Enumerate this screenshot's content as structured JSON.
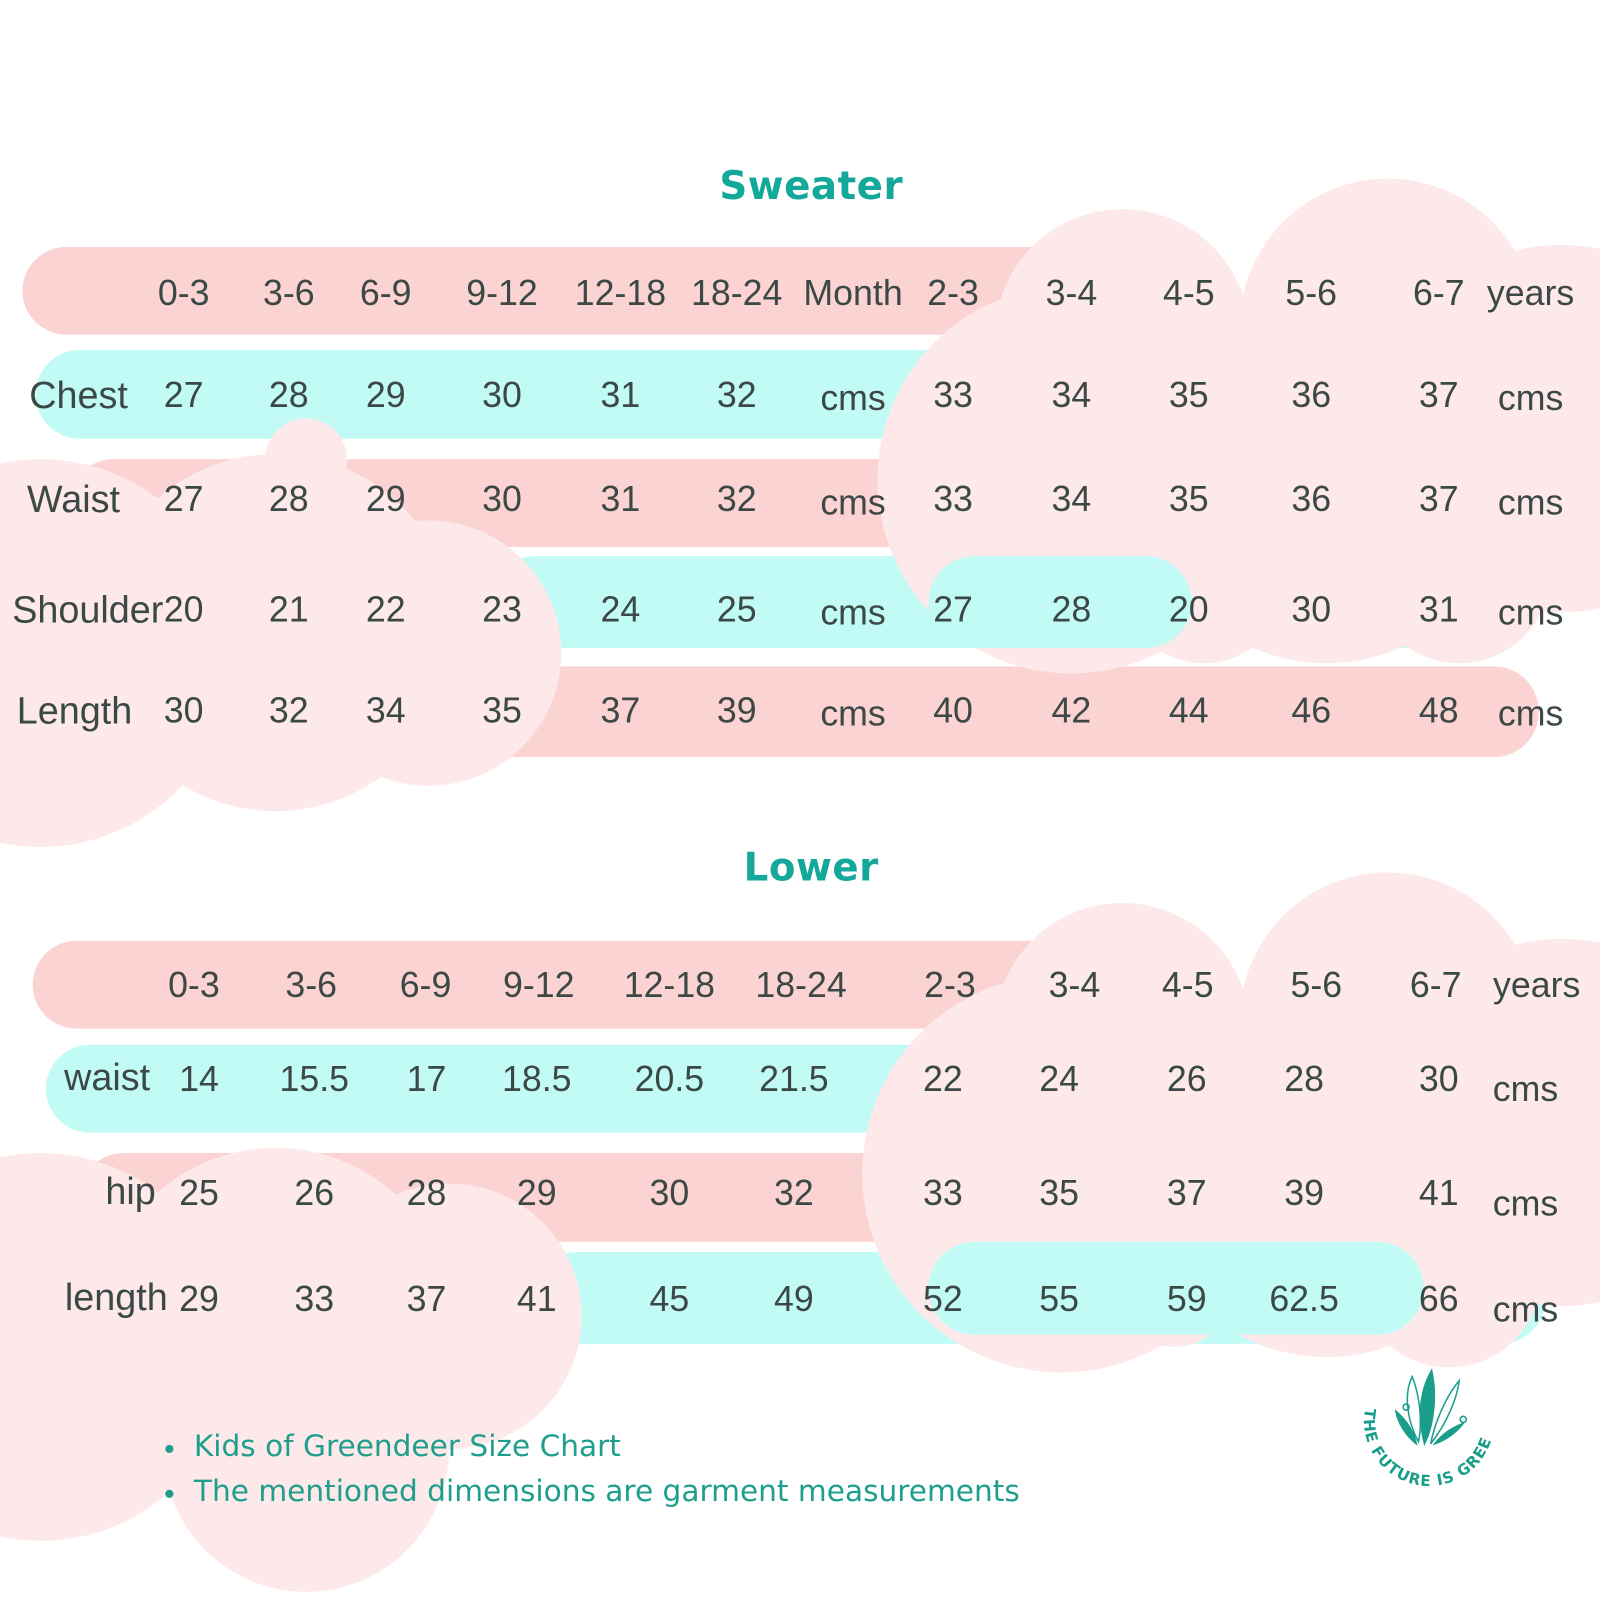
{
  "colors": {
    "band_pink": "#fcd3d3",
    "band_cyan": "#c2fbf6",
    "cloud": "#fde9e9",
    "title": "#14a89b",
    "text": "#3b4846",
    "note": "#1e9e8c"
  },
  "sweater": {
    "title": "Sweater",
    "header": [
      "0-3",
      "3-6",
      "6-9",
      "9-12",
      "12-18",
      "18-24",
      "Month",
      "2-3",
      "3-4",
      "4-5",
      "5-6",
      "6-7",
      "years"
    ],
    "rows": [
      {
        "label": "Chest",
        "values": [
          "27",
          "28",
          "29",
          "30",
          "31",
          "32",
          "cms",
          "33",
          "34",
          "35",
          "36",
          "37",
          "cms"
        ]
      },
      {
        "label": "Waist",
        "values": [
          "27",
          "28",
          "29",
          "30",
          "31",
          "32",
          "cms",
          "33",
          "34",
          "35",
          "36",
          "37",
          "cms"
        ]
      },
      {
        "label": "Shoulder",
        "values": [
          "20",
          "21",
          "22",
          "23",
          "24",
          "25",
          "cms",
          "27",
          "28",
          "20",
          "30",
          "31",
          "cms"
        ]
      },
      {
        "label": "Length",
        "values": [
          "30",
          "32",
          "34",
          "35",
          "37",
          "39",
          "cms",
          "40",
          "42",
          "44",
          "46",
          "48",
          "cms"
        ]
      }
    ]
  },
  "lower": {
    "title": "Lower",
    "header": [
      "0-3",
      "3-6",
      "6-9",
      "9-12",
      "12-18",
      "18-24",
      "2-3",
      "3-4",
      "4-5",
      "5-6",
      "6-7",
      "years"
    ],
    "rows": [
      {
        "label": "waist",
        "values": [
          "14",
          "15.5",
          "17",
          "18.5",
          "20.5",
          "21.5",
          "22",
          "24",
          "26",
          "28",
          "30",
          "cms"
        ]
      },
      {
        "label": "hip",
        "values": [
          "25",
          "26",
          "28",
          "29",
          "30",
          "32",
          "33",
          "35",
          "37",
          "39",
          "41",
          "cms"
        ]
      },
      {
        "label": "length",
        "values": [
          "29",
          "33",
          "37",
          "41",
          "45",
          "49",
          "52",
          "55",
          "59",
          "62.5",
          "66",
          "cms"
        ]
      }
    ]
  },
  "notes": [
    "Kids of Greendeer Size Chart",
    "The mentioned dimensions are garment measurements"
  ],
  "logo": {
    "text": "THE FUTURE IS GREEN"
  }
}
